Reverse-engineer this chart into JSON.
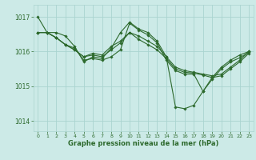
{
  "line_color": "#2d6a2d",
  "bg_color": "#cceae7",
  "grid_color": "#aad4d0",
  "xlabel": "Graphe pression niveau de la mer (hPa)",
  "ylim": [
    1013.7,
    1017.35
  ],
  "xlim": [
    -0.5,
    23.5
  ],
  "yticks": [
    1014,
    1015,
    1016,
    1017
  ],
  "xticks": [
    0,
    1,
    2,
    3,
    4,
    5,
    6,
    7,
    8,
    9,
    10,
    11,
    12,
    13,
    14,
    15,
    16,
    17,
    18,
    19,
    20,
    21,
    22,
    23
  ],
  "series": [
    [
      1017.0,
      1016.55,
      1016.55,
      1016.45,
      1016.15,
      1015.7,
      1015.85,
      1015.8,
      1016.1,
      1016.55,
      1016.85,
      1016.65,
      1016.55,
      1016.3,
      1015.85,
      1014.4,
      1014.35,
      1014.45,
      1014.85,
      1015.25,
      1015.55,
      1015.75,
      1015.9,
      1016.0
    ],
    [
      1016.55,
      1016.55,
      1016.4,
      1016.2,
      1016.05,
      1015.85,
      1015.95,
      1015.9,
      1016.15,
      1016.3,
      1016.55,
      1016.45,
      1016.3,
      1016.15,
      1015.85,
      1015.55,
      1015.45,
      1015.4,
      1015.35,
      1015.3,
      1015.35,
      1015.55,
      1015.75,
      1016.0
    ],
    [
      1016.55,
      1016.55,
      1016.4,
      1016.2,
      1016.05,
      1015.85,
      1015.9,
      1015.85,
      1016.05,
      1016.25,
      1016.55,
      1016.35,
      1016.2,
      1016.05,
      1015.8,
      1015.5,
      1015.4,
      1015.38,
      1015.32,
      1015.25,
      1015.3,
      1015.5,
      1015.7,
      1015.95
    ],
    [
      1016.55,
      1016.55,
      1016.4,
      1016.2,
      1016.1,
      1015.75,
      1015.8,
      1015.75,
      1015.85,
      1016.05,
      1016.82,
      1016.62,
      1016.48,
      1016.25,
      1015.75,
      1015.45,
      1015.35,
      1015.35,
      1014.85,
      1015.2,
      1015.5,
      1015.7,
      1015.82,
      1015.98
    ]
  ]
}
